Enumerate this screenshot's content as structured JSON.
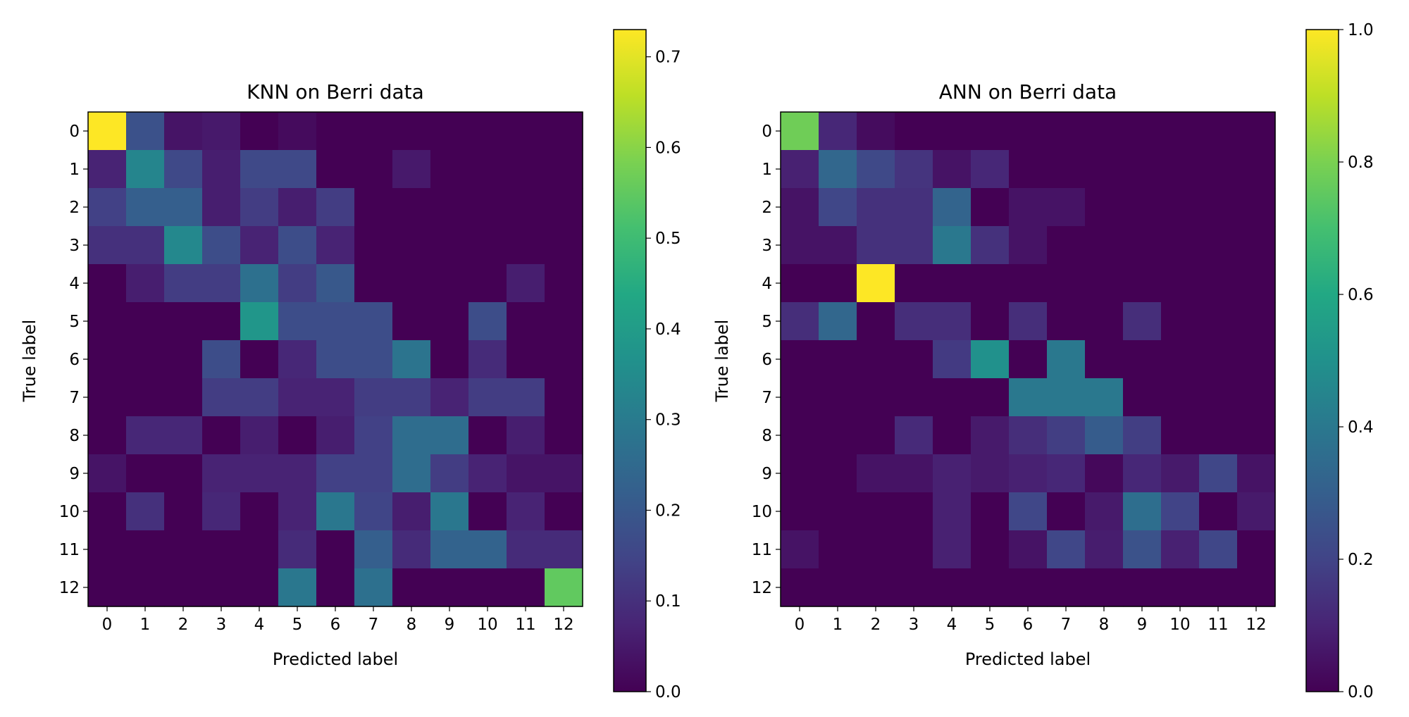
{
  "chart_data": [
    {
      "type": "heatmap",
      "title": "KNN on Berri data",
      "xlabel": "Predicted label",
      "ylabel": "True label",
      "x_categories": [
        "0",
        "1",
        "2",
        "3",
        "4",
        "5",
        "6",
        "7",
        "8",
        "9",
        "10",
        "11",
        "12"
      ],
      "y_categories": [
        "0",
        "1",
        "2",
        "3",
        "4",
        "5",
        "6",
        "7",
        "8",
        "9",
        "10",
        "11",
        "12"
      ],
      "colormap": "viridis",
      "vmin": 0,
      "vmax": 0.73,
      "colorbar_ticks": [
        0.0,
        0.1,
        0.2,
        0.3,
        0.4,
        0.5,
        0.6,
        0.7
      ],
      "colorbar_tick_labels": [
        "0.0",
        "0.1",
        "0.2",
        "0.3",
        "0.4",
        "0.5",
        "0.6",
        "0.7"
      ],
      "values": [
        [
          0.73,
          0.18,
          0.04,
          0.05,
          0.0,
          0.02,
          0.0,
          0.0,
          0.0,
          0.0,
          0.0,
          0.0,
          0.0
        ],
        [
          0.07,
          0.33,
          0.16,
          0.06,
          0.16,
          0.16,
          0.0,
          0.0,
          0.05,
          0.0,
          0.0,
          0.0,
          0.0
        ],
        [
          0.14,
          0.22,
          0.22,
          0.06,
          0.13,
          0.06,
          0.13,
          0.0,
          0.0,
          0.0,
          0.0,
          0.0,
          0.0
        ],
        [
          0.1,
          0.1,
          0.34,
          0.17,
          0.07,
          0.17,
          0.07,
          0.0,
          0.0,
          0.0,
          0.0,
          0.0,
          0.0
        ],
        [
          0.0,
          0.06,
          0.13,
          0.13,
          0.27,
          0.13,
          0.2,
          0.0,
          0.0,
          0.0,
          0.0,
          0.06,
          0.0
        ],
        [
          0.0,
          0.0,
          0.0,
          0.0,
          0.38,
          0.17,
          0.17,
          0.17,
          0.0,
          0.0,
          0.17,
          0.0,
          0.0
        ],
        [
          0.0,
          0.0,
          0.0,
          0.17,
          0.0,
          0.08,
          0.17,
          0.17,
          0.28,
          0.0,
          0.09,
          0.0,
          0.0
        ],
        [
          0.0,
          0.0,
          0.0,
          0.13,
          0.13,
          0.07,
          0.07,
          0.13,
          0.13,
          0.07,
          0.13,
          0.13,
          0.0
        ],
        [
          0.0,
          0.08,
          0.08,
          0.0,
          0.06,
          0.0,
          0.06,
          0.14,
          0.26,
          0.26,
          0.0,
          0.06,
          0.0
        ],
        [
          0.04,
          0.0,
          0.0,
          0.07,
          0.07,
          0.07,
          0.14,
          0.14,
          0.26,
          0.13,
          0.07,
          0.04,
          0.04
        ],
        [
          0.0,
          0.1,
          0.0,
          0.08,
          0.0,
          0.07,
          0.29,
          0.15,
          0.06,
          0.29,
          0.0,
          0.07,
          0.0
        ],
        [
          0.0,
          0.0,
          0.0,
          0.0,
          0.0,
          0.09,
          0.0,
          0.22,
          0.09,
          0.23,
          0.23,
          0.09,
          0.09
        ],
        [
          0.0,
          0.0,
          0.0,
          0.0,
          0.0,
          0.29,
          0.0,
          0.27,
          0.0,
          0.0,
          0.0,
          0.0,
          0.55
        ]
      ]
    },
    {
      "type": "heatmap",
      "title": "ANN on Berri data",
      "xlabel": "Predicted label",
      "ylabel": "True label",
      "x_categories": [
        "0",
        "1",
        "2",
        "3",
        "4",
        "5",
        "6",
        "7",
        "8",
        "9",
        "10",
        "11",
        "12"
      ],
      "y_categories": [
        "0",
        "1",
        "2",
        "3",
        "4",
        "5",
        "6",
        "7",
        "8",
        "9",
        "10",
        "11",
        "12"
      ],
      "colormap": "viridis",
      "vmin": 0,
      "vmax": 1.0,
      "colorbar_ticks": [
        0.0,
        0.2,
        0.4,
        0.6,
        0.8,
        1.0
      ],
      "colorbar_tick_labels": [
        "0.0",
        "0.2",
        "0.4",
        "0.6",
        "0.8",
        "1.0"
      ],
      "values": [
        [
          0.78,
          0.11,
          0.03,
          0.0,
          0.0,
          0.0,
          0.0,
          0.0,
          0.0,
          0.0,
          0.0,
          0.0,
          0.0
        ],
        [
          0.09,
          0.33,
          0.22,
          0.15,
          0.05,
          0.11,
          0.0,
          0.0,
          0.0,
          0.0,
          0.0,
          0.0,
          0.0
        ],
        [
          0.05,
          0.21,
          0.14,
          0.14,
          0.32,
          0.0,
          0.05,
          0.05,
          0.0,
          0.0,
          0.0,
          0.0,
          0.0
        ],
        [
          0.05,
          0.05,
          0.14,
          0.14,
          0.4,
          0.14,
          0.05,
          0.0,
          0.0,
          0.0,
          0.0,
          0.0,
          0.0
        ],
        [
          0.0,
          0.0,
          1.0,
          0.0,
          0.0,
          0.0,
          0.0,
          0.0,
          0.0,
          0.0,
          0.0,
          0.0,
          0.0
        ],
        [
          0.13,
          0.33,
          0.0,
          0.13,
          0.13,
          0.0,
          0.13,
          0.0,
          0.0,
          0.13,
          0.0,
          0.0,
          0.0
        ],
        [
          0.0,
          0.0,
          0.0,
          0.0,
          0.17,
          0.5,
          0.0,
          0.4,
          0.0,
          0.0,
          0.0,
          0.0,
          0.0
        ],
        [
          0.0,
          0.0,
          0.0,
          0.0,
          0.0,
          0.0,
          0.4,
          0.4,
          0.4,
          0.0,
          0.0,
          0.0,
          0.0
        ],
        [
          0.0,
          0.0,
          0.0,
          0.12,
          0.0,
          0.07,
          0.13,
          0.18,
          0.29,
          0.18,
          0.0,
          0.0,
          0.0
        ],
        [
          0.0,
          0.0,
          0.05,
          0.05,
          0.09,
          0.07,
          0.09,
          0.11,
          0.02,
          0.11,
          0.07,
          0.21,
          0.05
        ],
        [
          0.0,
          0.0,
          0.0,
          0.0,
          0.09,
          0.0,
          0.21,
          0.0,
          0.07,
          0.36,
          0.2,
          0.0,
          0.07
        ],
        [
          0.05,
          0.0,
          0.0,
          0.0,
          0.09,
          0.0,
          0.05,
          0.21,
          0.08,
          0.25,
          0.09,
          0.21,
          0.0
        ],
        [
          0.0,
          0.0,
          0.0,
          0.0,
          0.0,
          0.0,
          0.0,
          0.0,
          0.0,
          0.0,
          0.0,
          0.0,
          0.0
        ]
      ]
    }
  ]
}
